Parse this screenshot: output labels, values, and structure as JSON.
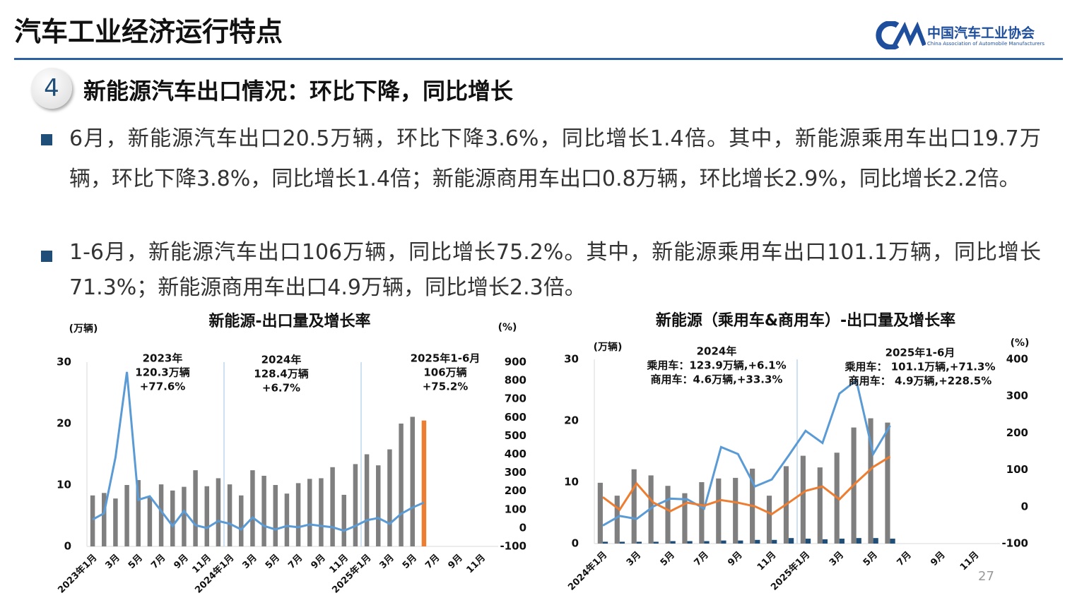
{
  "header": {
    "title": "汽车工业经济运行特点",
    "org_name": "中国汽车工业协会",
    "org_name_en": "China Association of Automobile Manufacturers"
  },
  "section": {
    "number": "4",
    "title": "新能源汽车出口情况：环比下降，同比增长"
  },
  "bullets": [
    "6月，新能源汽车出口20.5万辆，环比下降3.6%，同比增长1.4倍。其中，新能源乘用车出口19.7万辆，环比下降3.8%，同比增长1.4倍；新能源商用车出口0.8万辆，环比增长2.9%，同比增长2.2倍。",
    "1-6月，新能源汽车出口106万辆，同比增长75.2%。其中，新能源乘用车出口101.1万辆，同比增长71.3%；新能源商用车出口4.9万辆，同比增长2.3倍。"
  ],
  "page_number": "27",
  "chart_data": [
    {
      "type": "bar_line",
      "title": "新能源-出口量及增长率",
      "y_label": "(万辆)",
      "y2_label": "(%)",
      "categories": [
        "2023年1月",
        null,
        "3月",
        null,
        "5月",
        null,
        "7月",
        null,
        "9月",
        null,
        "11月",
        null,
        "2024年1月",
        null,
        "3月",
        null,
        "5月",
        null,
        "7月",
        null,
        "9月",
        null,
        "11月",
        null,
        "2025年1月",
        null,
        "3月",
        null,
        "5月",
        null,
        "7月",
        null,
        "9月",
        null,
        "11月",
        null
      ],
      "series": [
        {
          "kind": "bar",
          "color": "#7f7f7f",
          "values": [
            8.3,
            8.7,
            7.8,
            10.0,
            10.8,
            8.0,
            10.1,
            9.1,
            9.7,
            12.4,
            9.8,
            11.1,
            10.1,
            8.3,
            12.4,
            11.5,
            10.0,
            8.6,
            10.3,
            11.0,
            11.1,
            12.9,
            8.4,
            13.4,
            15.0,
            13.2,
            15.8,
            20.0,
            21.1,
            null,
            null,
            null,
            null,
            null,
            null,
            null
          ]
        },
        {
          "kind": "bar",
          "color": "#ed7d31",
          "values": [
            null,
            null,
            null,
            null,
            null,
            null,
            null,
            null,
            null,
            null,
            null,
            null,
            null,
            null,
            null,
            null,
            null,
            null,
            null,
            null,
            null,
            null,
            null,
            null,
            null,
            null,
            null,
            null,
            null,
            20.5,
            null,
            null,
            null,
            null,
            null,
            null
          ]
        },
        {
          "kind": "line",
          "axis": "y2",
          "color": "#5b9bd5",
          "values": [
            46,
            80,
            383,
            847,
            153,
            172,
            92,
            11,
            92,
            15,
            0,
            38,
            23,
            -8,
            57,
            11,
            -8,
            11,
            4,
            19,
            11,
            4,
            -15,
            11,
            42,
            54,
            23,
            77,
            111,
            138,
            null,
            null,
            null,
            null,
            null,
            null
          ]
        }
      ],
      "ylim": [
        0,
        30
      ],
      "yticks": [
        0,
        10,
        20,
        30
      ],
      "y2lim": [
        -100,
        900
      ],
      "y2ticks": [
        -100,
        0,
        100,
        200,
        300,
        400,
        500,
        600,
        700,
        800,
        900
      ],
      "annotations": [
        [
          "2023年",
          "120.3万辆",
          "+77.6%"
        ],
        [
          "2024年",
          "128.4万辆",
          "+6.7%"
        ],
        [
          "2025年1-6月",
          "106万辆",
          "+75.2%"
        ]
      ]
    },
    {
      "type": "bar_line",
      "title": "新能源（乘用车&商用车）-出口量及增长率",
      "y_label": "(万辆)",
      "y2_label": "(%)",
      "categories": [
        "2024年1月",
        null,
        "3月",
        null,
        "5月",
        null,
        "7月",
        null,
        "9月",
        null,
        "11月",
        null,
        "2025年1月",
        null,
        "3月",
        null,
        "5月",
        null,
        "7月",
        null,
        "9月",
        null,
        "11月",
        null
      ],
      "series": [
        {
          "kind": "bar",
          "color": "#7f7f7f",
          "values": [
            9.9,
            7.8,
            12.1,
            11.1,
            9.4,
            8.2,
            10.0,
            10.6,
            10.7,
            12.2,
            7.8,
            12.6,
            14.3,
            12.4,
            14.8,
            18.9,
            20.4,
            19.7,
            null,
            null,
            null,
            null,
            null,
            null
          ]
        },
        {
          "kind": "bar",
          "color": "#1f4e79",
          "values": [
            0.3,
            0.3,
            0.3,
            0.3,
            0.4,
            0.4,
            0.4,
            0.5,
            0.5,
            0.6,
            0.6,
            0.9,
            0.8,
            0.7,
            0.8,
            0.9,
            0.9,
            0.8,
            null,
            null,
            null,
            null,
            null,
            null
          ]
        },
        {
          "kind": "line",
          "axis": "y2",
          "color": "#5b9bd5",
          "values": [
            -51,
            -25,
            -33,
            1,
            22,
            20,
            -5,
            162,
            143,
            55,
            74,
            139,
            206,
            173,
            307,
            343,
            143,
            220,
            null,
            null,
            null,
            null,
            null,
            null
          ]
        },
        {
          "kind": "line",
          "axis": "y2",
          "color": "#ed7d31",
          "values": [
            26,
            -8,
            63,
            11,
            -12,
            11,
            3,
            18,
            11,
            1,
            -20,
            11,
            43,
            55,
            20,
            66,
            108,
            136,
            null,
            null,
            null,
            null,
            null,
            null
          ]
        }
      ],
      "ylim": [
        0,
        30
      ],
      "yticks": [
        0,
        10,
        20,
        30
      ],
      "y2lim": [
        -100,
        400
      ],
      "y2ticks": [
        -100,
        0,
        100,
        200,
        300,
        400
      ],
      "annotations": [
        [
          "2024年",
          "乘用车：123.9万辆,+6.1%",
          "商用车：4.6万辆,+33.3%"
        ],
        [
          "2025年1-6月",
          "乘用车： 101.1万辆,+71.3%",
          "商用车： 4.9万辆,+228.5%"
        ]
      ]
    }
  ]
}
